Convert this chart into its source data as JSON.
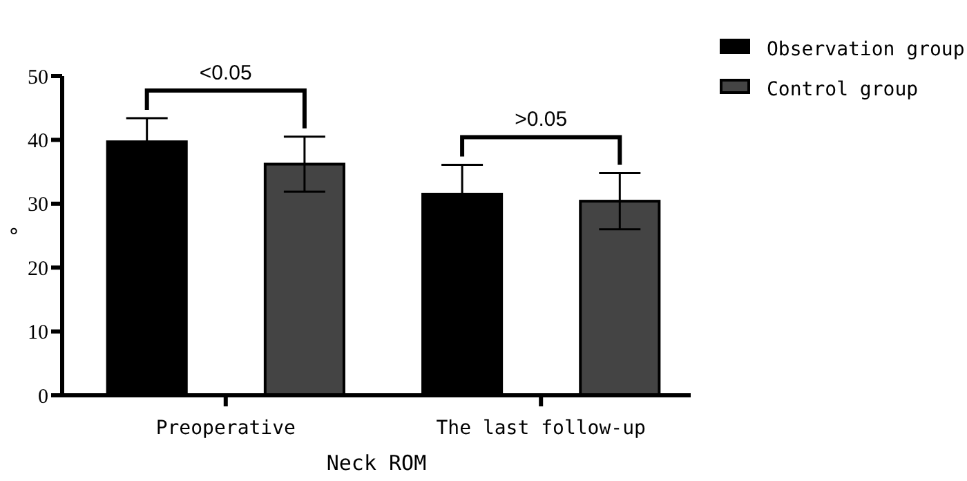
{
  "chart_data": {
    "type": "bar",
    "xlabel": "Neck ROM",
    "ylabel": "°",
    "categories": [
      "Preoperative",
      "The last follow-up"
    ],
    "series": [
      {
        "name": "Observation group",
        "color": "#000000",
        "values": [
          39.7,
          31.5
        ],
        "errors": [
          3.7,
          4.6
        ]
      },
      {
        "name": "Control group",
        "color": "#444444",
        "values": [
          36.2,
          30.4
        ],
        "errors": [
          4.3,
          4.4
        ]
      }
    ],
    "ylim": [
      0,
      50
    ],
    "yticks": [
      0,
      10,
      20,
      30,
      40,
      50
    ],
    "grid": false,
    "legend": "top right",
    "annotations": [
      "<0.05",
      ">0.05"
    ]
  }
}
